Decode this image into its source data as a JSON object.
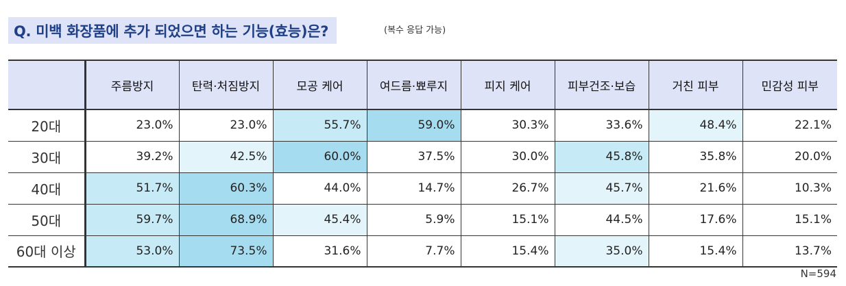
{
  "header": {
    "title": "Q. 미백 화장품에 추가 되었으면 하는 기능(효능)은?",
    "subtitle": "(복수 응답 가능)"
  },
  "footnote": "N=594",
  "chart_data": {
    "type": "table",
    "columns": [
      "주름방지",
      "탄력·처짐방지",
      "모공 케어",
      "여드름·뾰루지",
      "피지 케어",
      "피부건조·보습",
      "거친 피부",
      "민감성 피부"
    ],
    "rows": [
      {
        "label": "20대",
        "values": [
          "23.0%",
          "23.0%",
          "55.7%",
          "59.0%",
          "30.3%",
          "33.6%",
          "48.4%",
          "22.1%"
        ]
      },
      {
        "label": "30대",
        "values": [
          "39.2%",
          "42.5%",
          "60.0%",
          "37.5%",
          "30.0%",
          "45.8%",
          "35.8%",
          "20.0%"
        ]
      },
      {
        "label": "40대",
        "values": [
          "51.7%",
          "60.3%",
          "44.0%",
          "14.7%",
          "26.7%",
          "45.7%",
          "21.6%",
          "10.3%"
        ]
      },
      {
        "label": "50대",
        "values": [
          "59.7%",
          "68.9%",
          "45.4%",
          "5.9%",
          "15.1%",
          "44.5%",
          "17.6%",
          "15.1%"
        ]
      },
      {
        "label": "60대 이상",
        "values": [
          "53.0%",
          "73.5%",
          "31.6%",
          "7.7%",
          "15.4%",
          "35.0%",
          "15.4%",
          "13.7%"
        ]
      }
    ],
    "highlight_colors": {
      "strong": "#a6dcef",
      "medium": "#c6eaf6",
      "light": "#e3f4fb",
      "none": "#ffffff"
    },
    "highlights": [
      [
        "none",
        "none",
        "medium",
        "strong",
        "none",
        "none",
        "light",
        "none"
      ],
      [
        "none",
        "light",
        "strong",
        "none",
        "none",
        "medium",
        "none",
        "none"
      ],
      [
        "medium",
        "strong",
        "none",
        "none",
        "none",
        "light",
        "none",
        "none"
      ],
      [
        "medium",
        "strong",
        "light",
        "none",
        "none",
        "none",
        "none",
        "none"
      ],
      [
        "medium",
        "strong",
        "none",
        "none",
        "none",
        "light",
        "none",
        "none"
      ]
    ]
  }
}
